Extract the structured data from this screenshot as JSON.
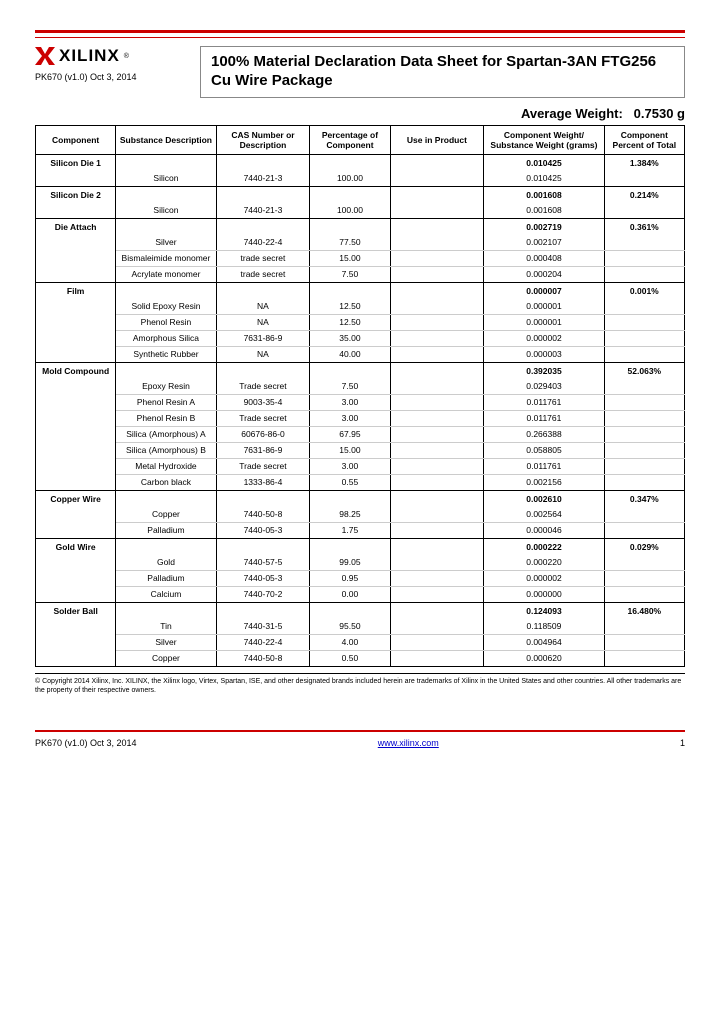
{
  "brand": "XILINX",
  "doc_id": "PK670 (v1.0) Oct 3, 2014",
  "title": "100% Material Declaration Data Sheet for Spartan-3AN FTG256 Cu Wire Package",
  "avg_weight_label": "Average Weight:",
  "avg_weight_value": "0.7530 g",
  "columns": [
    "Component",
    "Substance Description",
    "CAS Number or Description",
    "Percentage of Component",
    "Use in Product",
    "Component Weight/ Substance Weight (grams)",
    "Component Percent of Total"
  ],
  "components": [
    {
      "name": "Silicon Die 1",
      "weight": "0.010425",
      "percent": "1.384%",
      "rows": [
        {
          "sub": "Silicon",
          "cas": "7440-21-3",
          "pct": "100.00",
          "use": "",
          "wt": "0.010425"
        }
      ]
    },
    {
      "name": "Silicon Die 2",
      "weight": "0.001608",
      "percent": "0.214%",
      "rows": [
        {
          "sub": "Silicon",
          "cas": "7440-21-3",
          "pct": "100.00",
          "use": "",
          "wt": "0.001608"
        }
      ]
    },
    {
      "name": "Die Attach",
      "weight": "0.002719",
      "percent": "0.361%",
      "rows": [
        {
          "sub": "Silver",
          "cas": "7440-22-4",
          "pct": "77.50",
          "use": "",
          "wt": "0.002107"
        },
        {
          "sub": "Bismaleimide monomer",
          "cas": "trade secret",
          "pct": "15.00",
          "use": "",
          "wt": "0.000408"
        },
        {
          "sub": "Acrylate monomer",
          "cas": "trade secret",
          "pct": "7.50",
          "use": "",
          "wt": "0.000204"
        }
      ]
    },
    {
      "name": "Film",
      "weight": "0.000007",
      "percent": "0.001%",
      "rows": [
        {
          "sub": "Solid Epoxy Resin",
          "cas": "NA",
          "pct": "12.50",
          "use": "",
          "wt": "0.000001"
        },
        {
          "sub": "Phenol Resin",
          "cas": "NA",
          "pct": "12.50",
          "use": "",
          "wt": "0.000001"
        },
        {
          "sub": "Amorphous Silica",
          "cas": "7631-86-9",
          "pct": "35.00",
          "use": "",
          "wt": "0.000002"
        },
        {
          "sub": "Synthetic Rubber",
          "cas": "NA",
          "pct": "40.00",
          "use": "",
          "wt": "0.000003"
        }
      ]
    },
    {
      "name": "Mold Compound",
      "weight": "0.392035",
      "percent": "52.063%",
      "rows": [
        {
          "sub": "Epoxy Resin",
          "cas": "Trade secret",
          "pct": "7.50",
          "use": "",
          "wt": "0.029403"
        },
        {
          "sub": "Phenol Resin A",
          "cas": "9003-35-4",
          "pct": "3.00",
          "use": "",
          "wt": "0.011761"
        },
        {
          "sub": "Phenol Resin B",
          "cas": "Trade secret",
          "pct": "3.00",
          "use": "",
          "wt": "0.011761"
        },
        {
          "sub": "Silica (Amorphous) A",
          "cas": "60676-86-0",
          "pct": "67.95",
          "use": "",
          "wt": "0.266388"
        },
        {
          "sub": "Silica (Amorphous) B",
          "cas": "7631-86-9",
          "pct": "15.00",
          "use": "",
          "wt": "0.058805"
        },
        {
          "sub": "Metal Hydroxide",
          "cas": "Trade secret",
          "pct": "3.00",
          "use": "",
          "wt": "0.011761"
        },
        {
          "sub": "Carbon black",
          "cas": "1333-86-4",
          "pct": "0.55",
          "use": "",
          "wt": "0.002156"
        }
      ]
    },
    {
      "name": "Copper Wire",
      "weight": "0.002610",
      "percent": "0.347%",
      "rows": [
        {
          "sub": "Copper",
          "cas": "7440-50-8",
          "pct": "98.25",
          "use": "",
          "wt": "0.002564"
        },
        {
          "sub": "Palladium",
          "cas": "7440-05-3",
          "pct": "1.75",
          "use": "",
          "wt": "0.000046"
        }
      ]
    },
    {
      "name": "Gold Wire",
      "weight": "0.000222",
      "percent": "0.029%",
      "rows": [
        {
          "sub": "Gold",
          "cas": "7440-57-5",
          "pct": "99.05",
          "use": "",
          "wt": "0.000220"
        },
        {
          "sub": "Palladium",
          "cas": "7440-05-3",
          "pct": "0.95",
          "use": "",
          "wt": "0.000002"
        },
        {
          "sub": "Calcium",
          "cas": "7440-70-2",
          "pct": "0.00",
          "use": "",
          "wt": "0.000000"
        }
      ]
    },
    {
      "name": "Solder Ball",
      "weight": "0.124093",
      "percent": "16.480%",
      "rows": [
        {
          "sub": "Tin",
          "cas": "7440-31-5",
          "pct": "95.50",
          "use": "",
          "wt": "0.118509"
        },
        {
          "sub": "Silver",
          "cas": "7440-22-4",
          "pct": "4.00",
          "use": "",
          "wt": "0.004964"
        },
        {
          "sub": "Copper",
          "cas": "7440-50-8",
          "pct": "0.50",
          "use": "",
          "wt": "0.000620"
        }
      ]
    }
  ],
  "copyright": "© Copyright 2014 Xilinx, Inc. XILINX, the Xilinx logo, Virtex, Spartan, ISE, and other designated brands included herein are trademarks of Xilinx in the United States and other countries. All other trademarks are the property of their respective owners.",
  "footer_url": "www.xilinx.com",
  "footer_page": "1"
}
